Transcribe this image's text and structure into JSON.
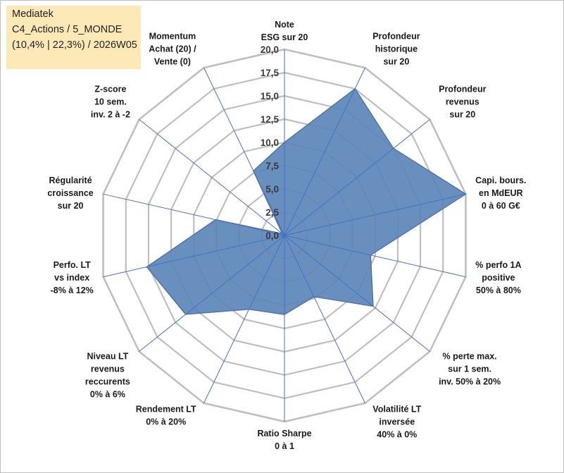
{
  "title_box": {
    "line1": "Mediatek",
    "line2": "C4_Actions / 5_MONDE",
    "line3": "(10,4% | 22,3%) / 2026W05"
  },
  "chart_data": {
    "type": "radar",
    "title": "Mediatek",
    "rmin": 0,
    "rmax": 20,
    "tick_values": [
      0,
      2.5,
      5,
      7.5,
      10,
      12.5,
      15,
      17.5,
      20
    ],
    "tick_labels": [
      "0,0",
      "2,5",
      "5,0",
      "7,5",
      "10,0",
      "12,5",
      "15,0",
      "17,5",
      "20,0"
    ],
    "categories": [
      [
        "Note",
        "ESG sur 20"
      ],
      [
        "Profondeur",
        "historique",
        "sur 20"
      ],
      [
        "Profondeur",
        "revenus",
        "sur 20"
      ],
      [
        "Capi. bours.",
        "en MdEUR",
        "0 à 60 G€"
      ],
      [
        "% perfo 1A",
        "positive",
        "50% à 80%"
      ],
      [
        "% perte max.",
        "sur 1 sem.",
        "inv. 50% à 20%"
      ],
      [
        "Volatilité LT",
        "inversée",
        "40% à 0%"
      ],
      [
        "Ratio Sharpe",
        "0 à 1"
      ],
      [
        "Rendement LT",
        "0% à 20%"
      ],
      [
        "Niveau LT",
        "revenus",
        "reccurents",
        "0% à 6%"
      ],
      [
        "Perfo. LT",
        "vs index",
        "-8% à 12%"
      ],
      [
        "Régularité",
        "croissance",
        "sur 20"
      ],
      [
        "Z-score",
        "10 sem.",
        "inv. 2 à -2"
      ],
      [
        "Momentum",
        "Achat (20) /",
        "Vente (0)"
      ]
    ],
    "series": [
      {
        "name": "Mediatek",
        "values": [
          10,
          17.5,
          15,
          20,
          9.5,
          12.2,
          7.3,
          8.5,
          8.8,
          13.6,
          15.2,
          7.6,
          0.3,
          7.7
        ]
      }
    ],
    "colors": {
      "fill": "#5b86b9",
      "stroke": "#4f76a6",
      "grid": "#bfbfbf",
      "spoke": "#4472c4"
    }
  }
}
